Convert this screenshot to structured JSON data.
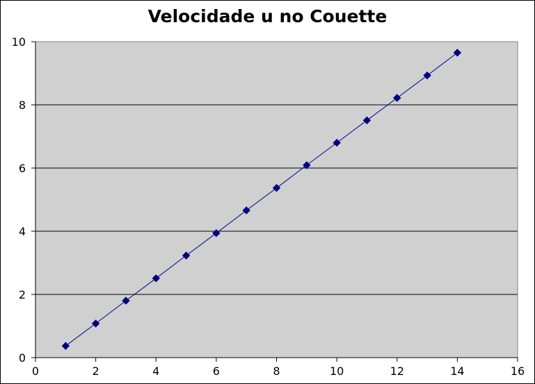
{
  "chart_data": {
    "type": "line",
    "title": "Velocidade u no Couette",
    "xlabel": "",
    "ylabel": "",
    "xlim": [
      0,
      16
    ],
    "ylim": [
      0,
      10
    ],
    "x_ticks": [
      "0",
      "2",
      "4",
      "6",
      "8",
      "10",
      "12",
      "14",
      "16"
    ],
    "y_ticks": [
      "0",
      "2",
      "4",
      "6",
      "8",
      "10"
    ],
    "grid": "horizontal",
    "legend": "none",
    "series": [
      {
        "color": "#000080",
        "marker": "diamond",
        "x": [
          1,
          2,
          3,
          4,
          5,
          6,
          7,
          8,
          9,
          10,
          11,
          12,
          13,
          14
        ],
        "y": [
          0.37,
          1.08,
          1.8,
          2.51,
          3.23,
          3.94,
          4.66,
          5.37,
          6.09,
          6.8,
          7.51,
          8.22,
          8.93,
          9.65
        ]
      }
    ],
    "colors": {
      "plot_background": "#d0d0d0",
      "gridline": "#000000",
      "series": "#000080"
    }
  }
}
